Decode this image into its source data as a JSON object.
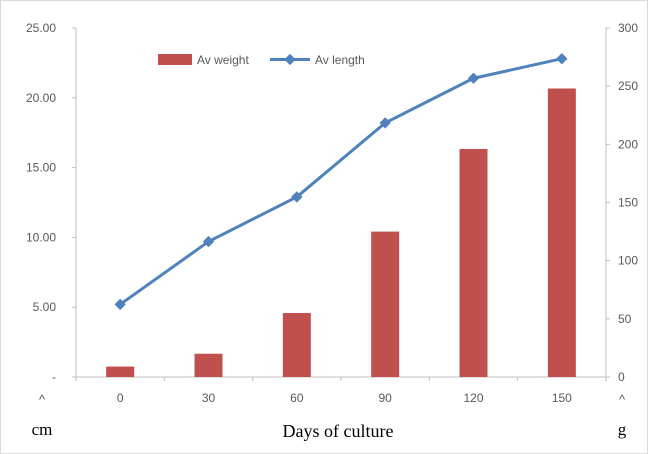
{
  "chart_data": {
    "type": "bar",
    "categories": [
      "0",
      "30",
      "60",
      "90",
      "120",
      "150"
    ],
    "series": [
      {
        "name": "Av weight",
        "kind": "bar",
        "axis": "right",
        "color": "#c0504d",
        "values": [
          9,
          20,
          55,
          125,
          196,
          248
        ]
      },
      {
        "name": "Av length",
        "kind": "line",
        "axis": "left",
        "color": "#4f81bd",
        "values": [
          5.2,
          9.7,
          12.9,
          18.2,
          21.4,
          22.8
        ]
      }
    ],
    "xlabel": "Days of culture",
    "left_axis": {
      "unit": "cm",
      "ylim": [
        0,
        25
      ],
      "ticks": [
        0,
        5,
        10,
        15,
        20,
        25
      ],
      "tick_labels": [
        "-",
        "5.00",
        "10.00",
        "15.00",
        "20.00",
        "25.00"
      ]
    },
    "right_axis": {
      "unit": "g",
      "ylim": [
        0,
        300
      ],
      "ticks": [
        0,
        50,
        100,
        150,
        200,
        250,
        300
      ],
      "tick_labels": [
        "0",
        "50",
        "100",
        "150",
        "200",
        "250",
        "300"
      ]
    },
    "axis_caret": "^",
    "grid": false,
    "legend_position": "top"
  }
}
